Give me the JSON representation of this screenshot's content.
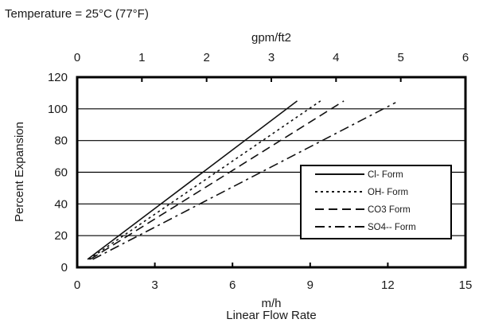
{
  "chart_data": {
    "type": "line",
    "note": "Temperature = 25°C (77°F)",
    "x_bottom": {
      "label_line1": "m/h",
      "label_line2": "Linear Flow Rate",
      "range": [
        0,
        15
      ],
      "ticks": [
        "0",
        "3",
        "6",
        "9",
        "12",
        "15"
      ]
    },
    "x_top": {
      "label": "gpm/ft2",
      "range": [
        0,
        6
      ],
      "ticks": [
        "0",
        "1",
        "2",
        "3",
        "4",
        "5",
        "6"
      ]
    },
    "y": {
      "label": "Percent Expansion",
      "range": [
        0,
        120
      ],
      "ticks": [
        "0",
        "20",
        "40",
        "60",
        "80",
        "100",
        "120"
      ]
    },
    "grid": "horizontal",
    "legend_position": "bottom-right",
    "series": [
      {
        "name": "Cl- Form",
        "style": "solid",
        "color": "#111111",
        "x": [
          0.4,
          8.5
        ],
        "y": [
          5,
          105
        ]
      },
      {
        "name": "OH- Form",
        "style": "dotted",
        "color": "#111111",
        "x": [
          0.45,
          9.4
        ],
        "y": [
          5,
          105
        ]
      },
      {
        "name": "CO3 Form",
        "style": "dashed",
        "color": "#111111",
        "x": [
          0.5,
          10.3
        ],
        "y": [
          5,
          105
        ]
      },
      {
        "name": "SO4-- Form",
        "style": "dashdot",
        "color": "#111111",
        "x": [
          0.6,
          12.3
        ],
        "y": [
          5,
          104
        ]
      }
    ]
  }
}
